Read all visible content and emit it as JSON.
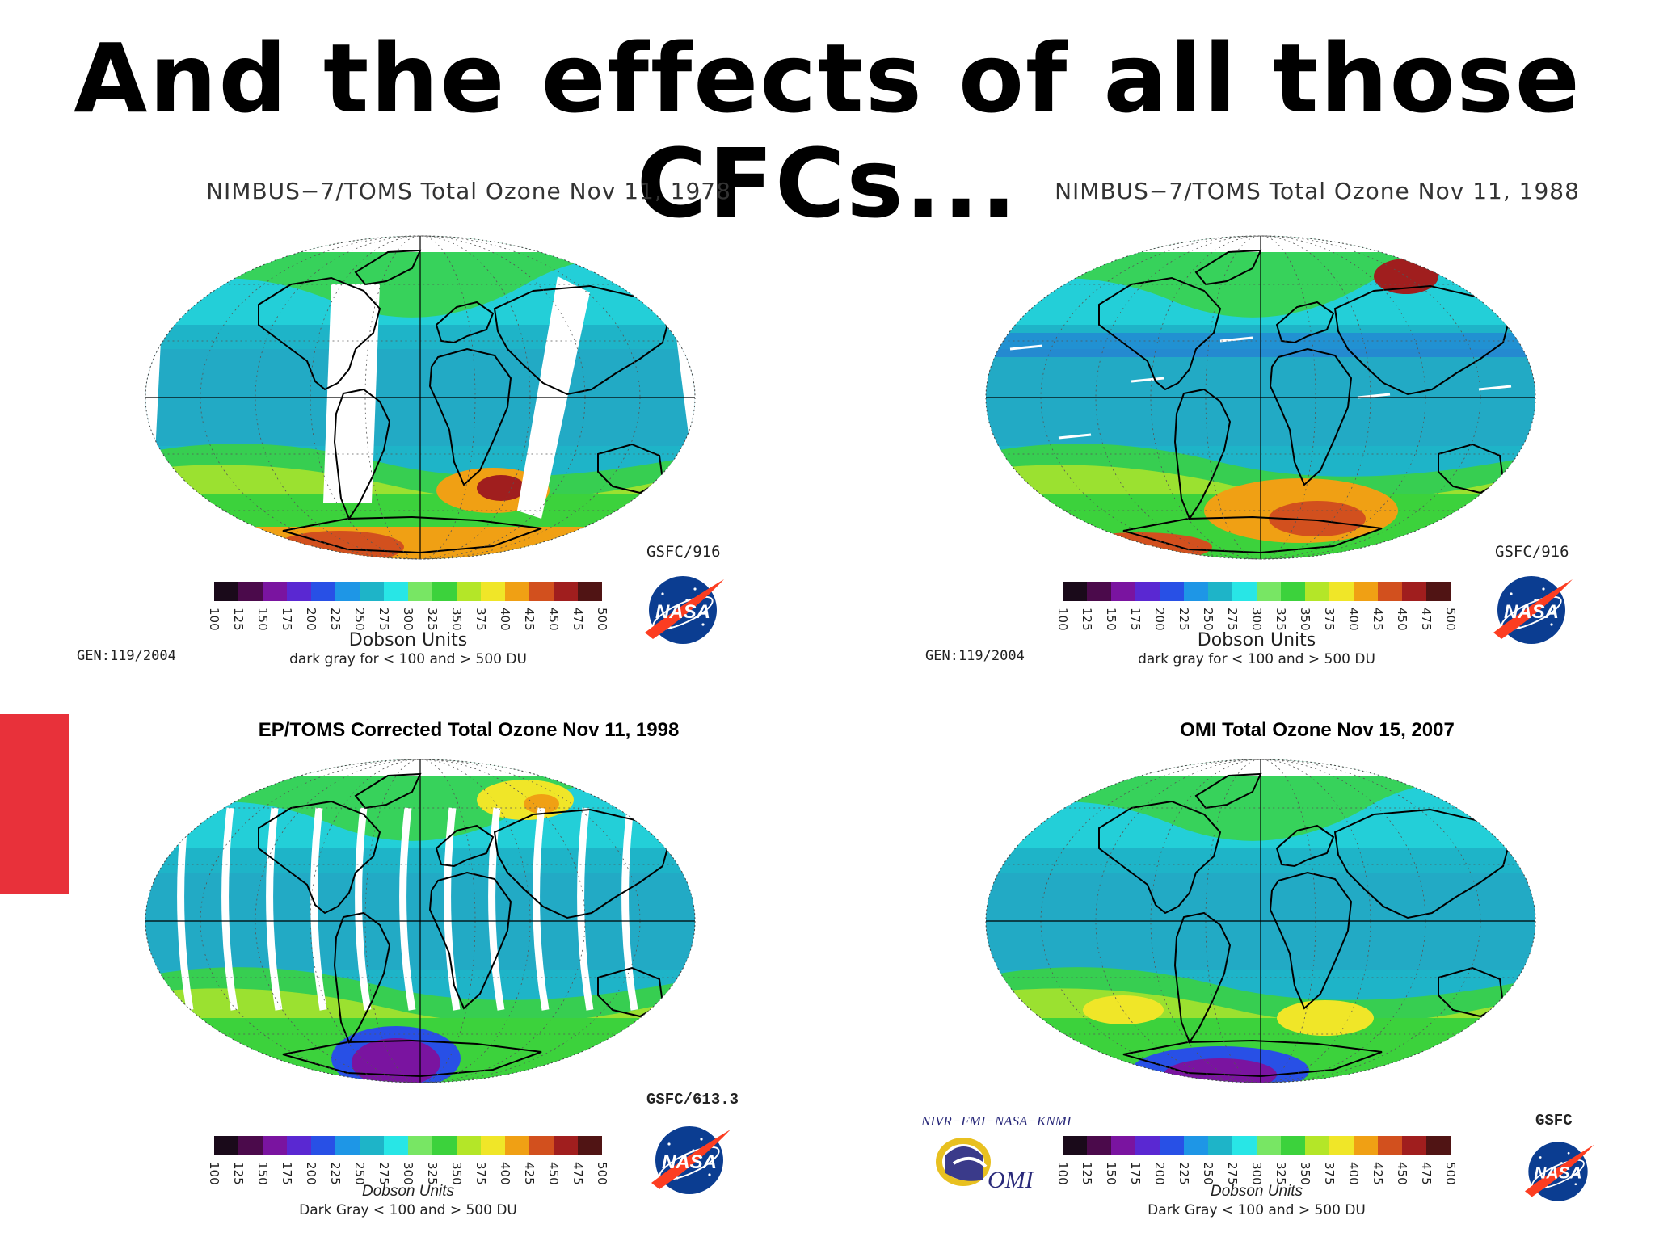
{
  "slide": {
    "title": "And the effects of all those CFCs..."
  },
  "colors": {
    "accent": "#e8313a",
    "land_outline": "#000000",
    "scale": [
      "#1a0a1a",
      "#4b0a4b",
      "#7a14a0",
      "#5a28d2",
      "#2850e6",
      "#1e96e6",
      "#1eb4c8",
      "#28e6e6",
      "#78e664",
      "#3cd23c",
      "#b4e628",
      "#f0e628",
      "#f0a014",
      "#d2501e",
      "#a01e1e",
      "#501414"
    ]
  },
  "scale": {
    "ticks": [
      "100",
      "125",
      "150",
      "175",
      "200",
      "225",
      "250",
      "275",
      "300",
      "325",
      "350",
      "375",
      "400",
      "425",
      "450",
      "475",
      "500"
    ]
  },
  "panels": [
    {
      "title": "NIMBUS−7/TOMS Total Ozone Nov 11, 1978",
      "units": "Dobson Units",
      "note": "dark gray for < 100 and > 500 DU",
      "gen": "GEN:119/2004",
      "code": "GSFC/916",
      "logo": "NASA",
      "icon": "nasa-logo-icon"
    },
    {
      "title": "NIMBUS−7/TOMS Total Ozone Nov 11, 1988",
      "units": "Dobson Units",
      "note": "dark gray for < 100 and > 500 DU",
      "gen": "GEN:119/2004",
      "code": "GSFC/916",
      "logo": "NASA",
      "icon": "nasa-logo-icon"
    },
    {
      "title": "EP/TOMS Corrected Total Ozone Nov 11, 1998",
      "units": "Dobson Units",
      "note": "Dark Gray < 100 and > 500 DU",
      "code": "GSFC/613.3",
      "logo": "NASA",
      "icon": "nasa-logo-icon"
    },
    {
      "title": "OMI Total Ozone Nov 15, 2007",
      "units": "Dobson Units",
      "note": "Dark Gray < 100 and > 500 DU",
      "code": "GSFC",
      "partners": "NIVR−FMI−NASA−KNMI",
      "omi": "OMI",
      "logo": "NASA",
      "icon": "nasa-logo-icon"
    }
  ]
}
